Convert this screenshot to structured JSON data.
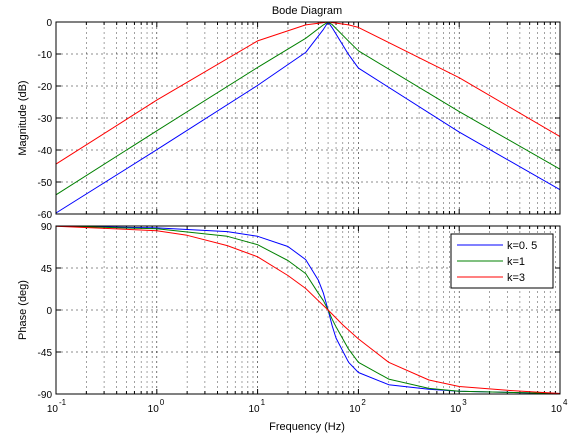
{
  "chart_data": {
    "type": "line",
    "title": "Bode Diagram",
    "xlabel": "Frequency  (Hz)",
    "x_scale": "log",
    "x_range": [
      0.1,
      10000
    ],
    "x_tick_labels": [
      [
        "10",
        "-1"
      ],
      [
        "10",
        "0"
      ],
      [
        "10",
        "1"
      ],
      [
        "10",
        "2"
      ],
      [
        "10",
        "3"
      ],
      [
        "10",
        "4"
      ]
    ],
    "center_frequency_hz": 50,
    "grid": true,
    "legend_position": "upper-right of phase plot",
    "panels": [
      {
        "name": "magnitude",
        "ylabel": "Magnitude (dB)",
        "ylim": [
          -60,
          0
        ],
        "y_tick_labels": [
          "0",
          "-10",
          "-20",
          "-30",
          "-40",
          "-50",
          "-60"
        ],
        "series": [
          {
            "name": "k=0.5",
            "color": "#0000ff",
            "x": [
              0.1,
              1,
              10,
              30,
              45,
              50,
              55,
              80,
              100,
              1000,
              10000
            ],
            "y": [
              -59.7,
              -39.9,
              -19.8,
              -9.5,
              -2.3,
              0.0,
              -1.8,
              -10.2,
              -14.4,
              -34.4,
              -52.4
            ]
          },
          {
            "name": "k=1",
            "color": "#008000",
            "x": [
              0.1,
              1,
              10,
              30,
              45,
              50,
              55,
              80,
              100,
              1000,
              10000
            ],
            "y": [
              -54.0,
              -34.0,
              -14.2,
              -5.1,
              -0.9,
              0.0,
              -0.8,
              -6.0,
              -9.0,
              -28.0,
              -46.0
            ]
          },
          {
            "name": "k=3",
            "color": "#ff0000",
            "x": [
              0.1,
              1,
              10,
              30,
              50,
              80,
              100,
              1000,
              10000
            ],
            "y": [
              -44.4,
              -24.4,
              -5.9,
              -0.9,
              0.0,
              -0.9,
              -1.7,
              -17.4,
              -35.8
            ]
          }
        ]
      },
      {
        "name": "phase",
        "ylabel": "Phase (deg)",
        "ylim": [
          -90,
          90
        ],
        "y_tick_labels": [
          "90",
          "45",
          "0",
          "-45",
          "-90"
        ],
        "series": [
          {
            "name": "k=0.5",
            "color": "#0000ff",
            "x": [
              0.1,
              1,
              5,
              10,
              20,
              30,
              40,
              45,
              50,
              55,
              60,
              80,
              100,
              200,
              500,
              1000,
              10000
            ],
            "y": [
              90,
              88,
              84,
              79,
              68,
              54,
              32,
              18,
              0,
              -17,
              -30,
              -56,
              -67,
              -80,
              -85,
              -87,
              -89.5
            ]
          },
          {
            "name": "k=1",
            "color": "#008000",
            "x": [
              0.1,
              1,
              5,
              10,
              20,
              30,
              40,
              45,
              50,
              55,
              60,
              80,
              100,
              200,
              500,
              1000,
              10000
            ],
            "y": [
              90,
              87,
              79,
              70,
              53,
              39,
              18,
              10,
              0,
              -10,
              -18,
              -42,
              -56,
              -74,
              -84,
              -87,
              -89.5
            ]
          },
          {
            "name": "k=3",
            "color": "#ff0000",
            "x": [
              0.1,
              1,
              2,
              5,
              10,
              20,
              30,
              40,
              50,
              70,
              100,
              200,
              500,
              1000,
              3000,
              10000
            ],
            "y": [
              89.8,
              85,
              80,
              69,
              57,
              37,
              23,
              10,
              0,
              -16,
              -31,
              -56,
              -75,
              -82,
              -86,
              -89.5
            ]
          }
        ]
      }
    ],
    "legend": [
      "k=0. 5",
      "k=1",
      "k=3"
    ]
  }
}
